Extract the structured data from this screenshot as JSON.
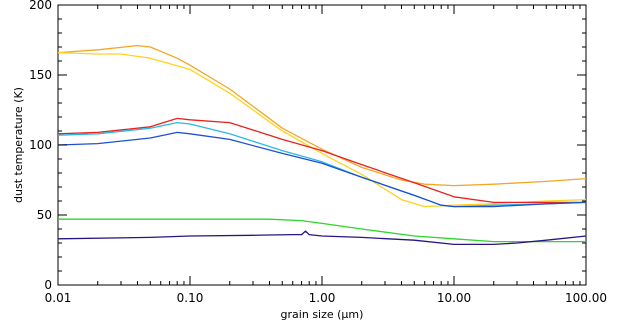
{
  "chart_data": {
    "type": "line",
    "title": "",
    "xlabel": "grain size (μm)",
    "ylabel": "dust temperature (K)",
    "xscale": "log",
    "xlim": [
      0.01,
      100.0
    ],
    "ylim": [
      0,
      200
    ],
    "xticks": [
      0.01,
      0.1,
      1.0,
      10.0,
      100.0
    ],
    "xtick_labels": [
      "0.01",
      "0.10",
      "1.00",
      "10.00",
      "100.00"
    ],
    "yticks": [
      0,
      50,
      100,
      150,
      200
    ],
    "ytick_labels": [
      "0",
      "50",
      "100",
      "150",
      "200"
    ],
    "grid": false,
    "legend": "none",
    "series": [
      {
        "color": "#f5a623",
        "x": [
          0.01,
          0.02,
          0.04,
          0.05,
          0.08,
          0.1,
          0.2,
          0.5,
          1.0,
          2.0,
          4.0,
          6.0,
          10.0,
          20.0,
          50.0,
          100.0
        ],
        "y": [
          166,
          168,
          171,
          170,
          162,
          157,
          140,
          112,
          97,
          84,
          75,
          72,
          71,
          72,
          74,
          76
        ]
      },
      {
        "color": "#ffd21f",
        "x": [
          0.01,
          0.02,
          0.03,
          0.05,
          0.1,
          0.2,
          0.5,
          1.0,
          2.0,
          4.0,
          6.0,
          10.0,
          20.0,
          50.0,
          100.0
        ],
        "y": [
          166,
          165,
          165,
          162,
          154,
          137,
          110,
          94,
          79,
          61,
          56,
          57,
          58,
          60,
          61
        ]
      },
      {
        "color": "#e8231c",
        "x": [
          0.01,
          0.02,
          0.05,
          0.08,
          0.1,
          0.2,
          0.5,
          1.0,
          2.0,
          5.0,
          10.0,
          20.0,
          50.0,
          100.0
        ],
        "y": [
          108,
          109,
          113,
          119,
          118,
          116,
          104,
          96,
          86,
          73,
          63,
          59,
          59,
          59
        ]
      },
      {
        "color": "#2bb8e8",
        "x": [
          0.01,
          0.02,
          0.05,
          0.08,
          0.1,
          0.2,
          0.5,
          1.0,
          2.0,
          5.0,
          8.0,
          10.0,
          20.0,
          50.0,
          100.0
        ],
        "y": [
          107,
          108,
          112,
          116,
          115,
          108,
          96,
          88,
          77,
          64,
          57,
          56,
          57,
          58,
          59
        ]
      },
      {
        "color": "#1f4fd1",
        "x": [
          0.01,
          0.02,
          0.05,
          0.08,
          0.1,
          0.2,
          0.5,
          1.0,
          2.0,
          5.0,
          8.0,
          10.0,
          20.0,
          50.0,
          100.0
        ],
        "y": [
          100,
          101,
          105,
          109,
          108,
          104,
          94,
          87,
          77,
          64,
          57,
          56,
          56,
          58,
          59
        ]
      },
      {
        "color": "#2ed62e",
        "x": [
          0.01,
          0.05,
          0.1,
          0.2,
          0.4,
          0.7,
          1.0,
          2.0,
          5.0,
          10.0,
          20.0,
          30.0,
          50.0,
          100.0
        ],
        "y": [
          47,
          47,
          47,
          47,
          47,
          46,
          44,
          40,
          35,
          33,
          31,
          31,
          31,
          31
        ]
      },
      {
        "color": "#2a1580",
        "x": [
          0.01,
          0.05,
          0.1,
          0.3,
          0.6,
          0.7,
          0.75,
          0.8,
          1.0,
          2.0,
          5.0,
          10.0,
          20.0,
          30.0,
          50.0,
          100.0
        ],
        "y": [
          33,
          34,
          35,
          35.5,
          36,
          36,
          38.5,
          36,
          35,
          34,
          32,
          29,
          29,
          30,
          32,
          35
        ]
      }
    ]
  }
}
